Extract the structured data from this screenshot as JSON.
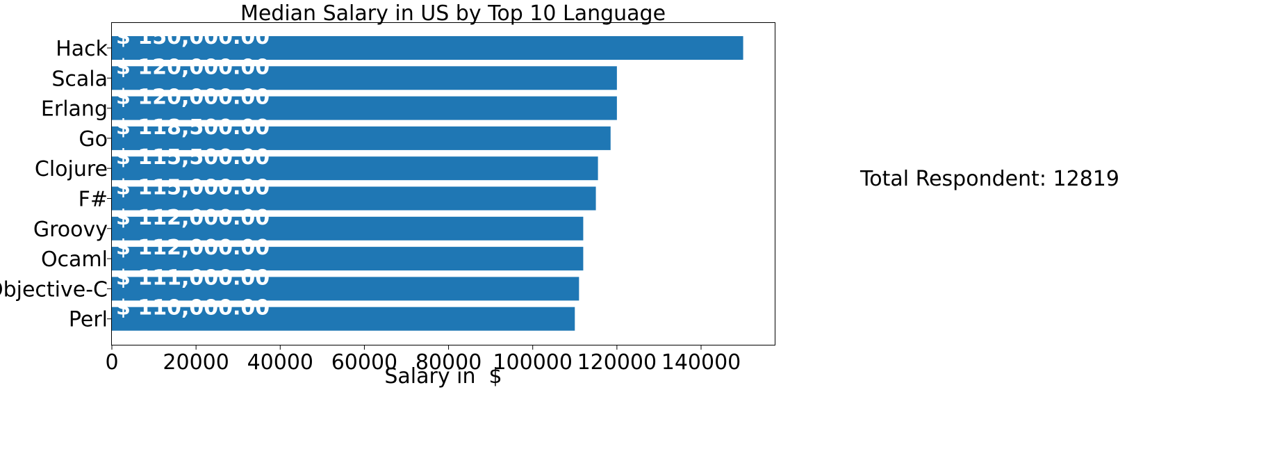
{
  "chart_data": {
    "type": "bar",
    "orientation": "horizontal",
    "title": "Median Salary in US by Top 10 Language",
    "xlabel": "Salary in  $",
    "ylabel": "",
    "categories": [
      "Hack",
      "Scala",
      "Erlang",
      "Go",
      "Clojure",
      "F#",
      "Groovy",
      "Ocaml",
      "Objective-C",
      "Perl"
    ],
    "values": [
      150000,
      120000,
      120000,
      118500,
      115500,
      115000,
      112000,
      112000,
      111000,
      110000
    ],
    "value_labels": [
      "$ 150,000.00",
      "$ 120,000.00",
      "$ 120,000.00",
      "$ 118,500.00",
      "$ 115,500.00",
      "$ 115,000.00",
      "$ 112,000.00",
      "$ 112,000.00",
      "$ 111,000.00",
      "$ 110,000.00"
    ],
    "xlim": [
      0,
      157500
    ],
    "xticks": [
      0,
      20000,
      40000,
      60000,
      80000,
      100000,
      120000,
      140000
    ],
    "xtick_labels": [
      "0",
      "20000",
      "40000",
      "60000",
      "80000",
      "100000",
      "120000",
      "140000"
    ],
    "grid": false,
    "bar_color": "#1f77b4",
    "label_color": "#ffffff"
  },
  "annotation": {
    "text": "Total Respondent: 12819"
  }
}
